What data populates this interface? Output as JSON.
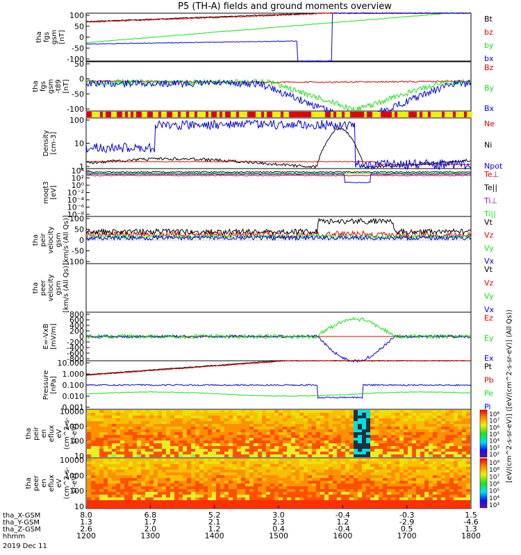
{
  "title": "P5 (TH-A) fields and ground moments overview",
  "colors": {
    "black": "#000000",
    "red": "#e00000",
    "green": "#18e018",
    "blue": "#0000e0",
    "magenta": "#b000b0",
    "yellow": "#f0f000"
  },
  "chart_data": {
    "type": "line",
    "x_axis": {
      "hhmm_ticks": [
        "1200",
        "1300",
        "1400",
        "1500",
        "1600",
        "1700",
        "1800"
      ],
      "row_labels": [
        "tha_X-GSM",
        "tha_Y-GSM",
        "tha_Z-GSM",
        "hhmm",
        "2019 Dec 11"
      ],
      "x_gsm": [
        "8.0",
        "6.8",
        "5.2",
        "3.0",
        "-0.4",
        "-0.3",
        "1.5"
      ],
      "y_gsm": [
        "1.3",
        "1.7",
        "2.1",
        "2.3",
        "1.2",
        "-2.9",
        "-4.6"
      ],
      "z_gsm": [
        "2.6",
        "2.0",
        "1.2",
        "0.4",
        "-0.4",
        "0.5",
        "1.3"
      ]
    },
    "panels": [
      {
        "id": "fgs",
        "ylabel": [
          "tha",
          "fgs",
          "gsm",
          "[nT]"
        ],
        "ylim": [
          -100,
          100
        ],
        "yticks": [
          "100",
          "50",
          "0",
          "-50",
          "-100"
        ],
        "legend": [
          {
            "text": "Bt",
            "color": "#000000"
          },
          {
            "text": "bz",
            "color": "#e00000"
          },
          {
            "text": "by",
            "color": "#18e018"
          },
          {
            "text": "bx",
            "color": "#0000e0"
          }
        ]
      },
      {
        "id": "fgs_t89",
        "ylabel": [
          "tha",
          "fgs",
          "gsm",
          "-t89",
          "[nT]"
        ],
        "ylim": [
          -120,
          50
        ],
        "yticks": [
          "50",
          "0",
          "-50",
          "-100"
        ],
        "legend": [
          {
            "text": "Bz",
            "color": "#e00000"
          },
          {
            "text": "By",
            "color": "#18e018"
          },
          {
            "text": "Bx",
            "color": "#0000e0"
          }
        ]
      },
      {
        "id": "density",
        "ylabel": [
          "Density",
          "[cm-3]"
        ],
        "log": true,
        "ylim": [
          0.5,
          200
        ],
        "yticks": [
          "100",
          "10",
          "1"
        ],
        "legend": [
          {
            "text": "Ne",
            "color": "#e00000"
          },
          {
            "text": "Ni",
            "color": "#000000"
          },
          {
            "text": "Npot",
            "color": "#0000e0"
          }
        ]
      },
      {
        "id": "temp",
        "ylabel": [
          "moqt3",
          "[eV]"
        ],
        "log": true,
        "yticks": [
          "10⁴",
          "10²",
          "10⁰",
          "10⁻²",
          "10⁻⁴",
          "10⁻⁶",
          "10⁻⁸"
        ],
        "legend": [
          {
            "text": "Te⊥",
            "color": "#e00000"
          },
          {
            "text": "Te||",
            "color": "#000000"
          },
          {
            "text": "Ti⊥",
            "color": "#b000b0"
          },
          {
            "text": "Ti||",
            "color": "#18e018"
          }
        ]
      },
      {
        "id": "peir_vel",
        "ylabel": [
          "tha",
          "peir",
          "velocity",
          "gsm",
          "[km/s (All Qs)]"
        ],
        "ylim": [
          -100,
          100
        ],
        "yticks": [
          "100",
          "50",
          "0",
          "-50",
          "-100"
        ],
        "legend": [
          {
            "text": "Vt",
            "color": "#000000"
          },
          {
            "text": "Vz",
            "color": "#e00000"
          },
          {
            "text": "Vy",
            "color": "#18e018"
          },
          {
            "text": "Vx",
            "color": "#0000e0"
          }
        ]
      },
      {
        "id": "peer_vel",
        "ylabel": [
          "tha",
          "peer",
          "velocity",
          "gsm",
          "[km/s (All Qs)]"
        ],
        "yticks": [],
        "legend": [
          {
            "text": "Vt",
            "color": "#000000"
          },
          {
            "text": "Vz",
            "color": "#e00000"
          },
          {
            "text": "Vy",
            "color": "#18e018"
          },
          {
            "text": "Vx",
            "color": "#0000e0"
          }
        ]
      },
      {
        "id": "efield",
        "ylabel": [
          "E=-VxB",
          "[mV/m]"
        ],
        "ylim": [
          -800,
          800
        ],
        "yticks": [
          "800",
          "600",
          "400",
          "200",
          "0",
          "-200",
          "-400",
          "-600",
          "-800"
        ],
        "legend": [
          {
            "text": "Ez",
            "color": "#e00000"
          },
          {
            "text": "Ey",
            "color": "#18e018"
          },
          {
            "text": "Ex",
            "color": "#0000e0"
          }
        ]
      },
      {
        "id": "pressure",
        "ylabel": [
          "Pressure",
          "[nPa]"
        ],
        "log": true,
        "ylim": [
          0.001,
          10
        ],
        "yticks": [
          "10.000",
          "1.000",
          "0.100",
          "0.010",
          "0.001"
        ],
        "legend": [
          {
            "text": "Pt",
            "color": "#000000"
          },
          {
            "text": "Pb",
            "color": "#e00000"
          },
          {
            "text": "Pe",
            "color": "#18e018"
          },
          {
            "text": "Pi",
            "color": "#0000e0"
          }
        ]
      },
      {
        "id": "peir_en",
        "type": "heatmap",
        "ylabel": [
          "tha",
          "peir",
          "en",
          "eflux",
          "eV",
          "(cm^2-s-",
          "sr-eV)"
        ],
        "yticks": [
          "10000",
          "1000",
          "100",
          "10"
        ],
        "colorbar": {
          "ticks": [
            "10⁸",
            "10⁷",
            "10⁶",
            "10⁵",
            "10⁴",
            "10³",
            "10²"
          ]
        }
      },
      {
        "id": "peer_en",
        "type": "heatmap",
        "ylabel": [
          "tha",
          "peer",
          "en",
          "eflux",
          "eV",
          "(cm^2-s-",
          "sr-eV)"
        ],
        "yticks": [
          "10000",
          "1000",
          "100",
          "10"
        ],
        "colorbar": {
          "ticks": [
            "10⁹",
            "10⁸",
            "10⁷",
            "10⁶",
            "10⁵",
            "10⁴",
            "10³"
          ]
        }
      }
    ],
    "colorbar_label": "[eV/(cm^2-s-sr-eV)] ([eV/(cm^2-s-sr-eV)] (All Qs))"
  }
}
